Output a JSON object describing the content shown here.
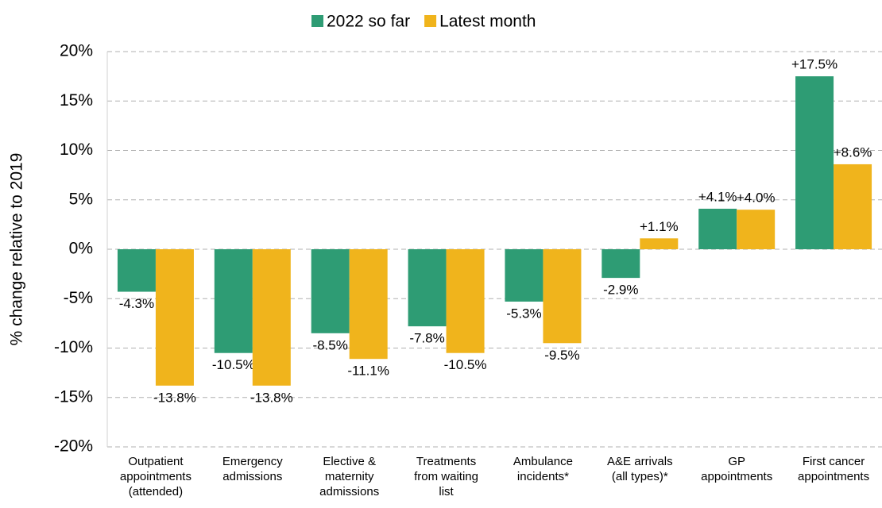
{
  "chart_data": {
    "type": "bar",
    "y_label": "% change relative to 2019",
    "categories": [
      "Outpatient\nappointments\n(attended)",
      "Emergency\nadmissions",
      "Elective &\nmaternity\nadmissions",
      "Treatments\nfrom waiting\nlist",
      "Ambulance\nincidents*",
      "A&E arrivals\n(all types)*",
      "GP\nappointments",
      "First cancer\nappointments"
    ],
    "series": [
      {
        "name": "2022 so far",
        "color": "#2e9c74",
        "values": [
          -4.3,
          -10.5,
          -8.5,
          -7.8,
          -5.3,
          -2.9,
          4.1,
          17.5
        ],
        "value_labels": [
          "-4.3%",
          "-10.5%",
          "-8.5%",
          "-7.8%",
          "-5.3%",
          "-2.9%",
          "+4.1%",
          "+17.5%"
        ]
      },
      {
        "name": "Latest month",
        "color": "#f0b41c",
        "values": [
          -13.8,
          -13.8,
          -11.1,
          -10.5,
          -9.5,
          1.1,
          4.0,
          8.6
        ],
        "value_labels": [
          "-13.8%",
          "-13.8%",
          "-11.1%",
          "-10.5%",
          "-9.5%",
          "+1.1%",
          "+4.0%",
          "+8.6%"
        ]
      }
    ],
    "ylim": [
      -20,
      20
    ],
    "yticks": [
      {
        "value": -20,
        "label": "-20%"
      },
      {
        "value": -15,
        "label": "-15%"
      },
      {
        "value": -10,
        "label": "-10%"
      },
      {
        "value": -5,
        "label": "-5%"
      },
      {
        "value": 0,
        "label": "0%"
      },
      {
        "value": 5,
        "label": "5%"
      },
      {
        "value": 10,
        "label": "10%"
      },
      {
        "value": 15,
        "label": "15%"
      },
      {
        "value": 20,
        "label": "20%"
      }
    ],
    "grid": true
  }
}
